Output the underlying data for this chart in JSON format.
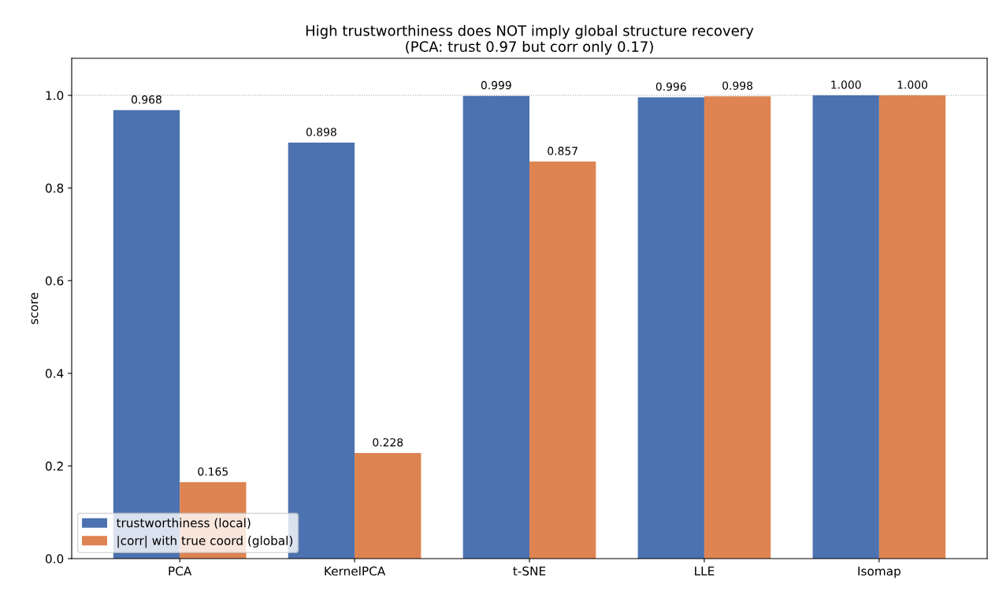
{
  "chart_data": {
    "type": "bar",
    "title": "High trustworthiness does NOT imply global structure recovery\n(PCA: trust 0.97 but corr only 0.17)",
    "ylabel": "score",
    "categories": [
      "PCA",
      "KernelPCA",
      "t-SNE",
      "LLE",
      "Isomap"
    ],
    "series": [
      {
        "name": "trustworthiness (local)",
        "color": "#4c72b0",
        "values": [
          0.968,
          0.898,
          0.999,
          0.996,
          1.0
        ],
        "value_labels": [
          "0.968",
          "0.898",
          "0.999",
          "0.996",
          "1.000"
        ]
      },
      {
        "name": "|corr| with true coord (global)",
        "color": "#dd8452",
        "values": [
          0.165,
          0.228,
          0.857,
          0.998,
          1.0
        ],
        "value_labels": [
          "0.165",
          "0.228",
          "0.857",
          "0.998",
          "1.000"
        ]
      }
    ],
    "ylim": [
      0,
      1.08
    ],
    "yticks": [
      {
        "value": 0,
        "label": "0.0"
      },
      {
        "value": 0.2,
        "label": "0.2"
      },
      {
        "value": 0.4,
        "label": "0.4"
      },
      {
        "value": 0.6,
        "label": "0.6"
      },
      {
        "value": 0.8,
        "label": "0.8"
      },
      {
        "value": 1.0,
        "label": "1.0"
      }
    ],
    "ref_lines": [
      {
        "axis": "y",
        "value": 1.0,
        "label": null,
        "color": "#999999",
        "line_style": "dotted"
      }
    ],
    "legend": "bottom left",
    "grid": false
  }
}
